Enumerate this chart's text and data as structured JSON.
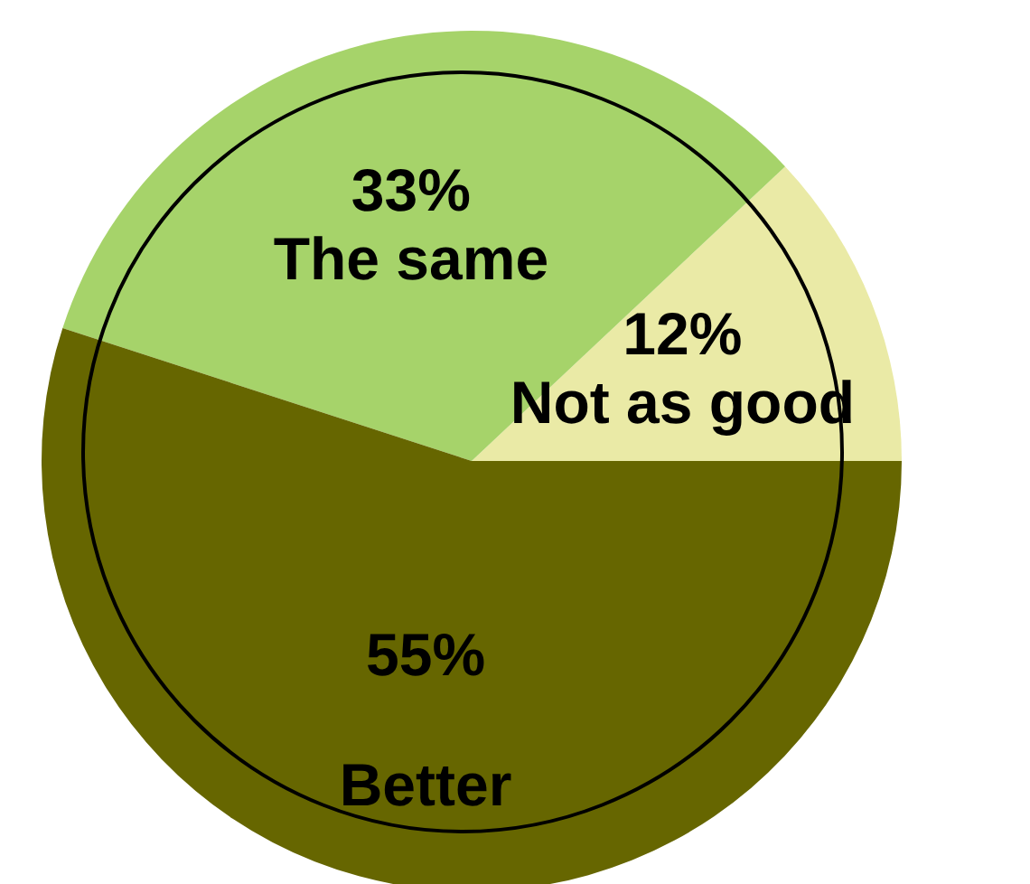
{
  "chart_data": {
    "type": "pie",
    "categories": [
      "Not as good",
      "The same",
      "Better"
    ],
    "values": [
      12,
      33,
      55
    ],
    "colors": [
      "#eaeaa6",
      "#a6d36a",
      "#666600"
    ],
    "value_labels": [
      "12%",
      "33%",
      "55%"
    ]
  }
}
